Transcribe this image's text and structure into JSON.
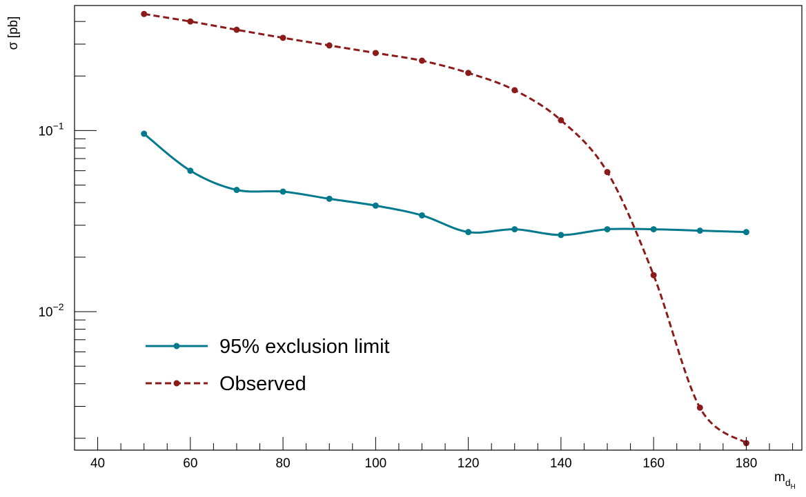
{
  "chart_data": {
    "type": "line",
    "title": "",
    "xlabel": "m",
    "xlabel_sub": "d",
    "xlabel_subsub": "H",
    "ylabel": "σ [pb]",
    "x_scale": "linear",
    "y_scale": "log",
    "xlim": [
      35,
      192
    ],
    "ylim": [
      0.00172,
      0.49
    ],
    "x_ticks": [
      40,
      60,
      80,
      100,
      120,
      140,
      160,
      180
    ],
    "y_ticks": [
      {
        "base": "10",
        "exp": "−1",
        "value": 0.1
      },
      {
        "base": "10",
        "exp": "−2",
        "value": 0.01
      }
    ],
    "grid": false,
    "legend_position": "bottom-left",
    "x": [
      50,
      60,
      70,
      80,
      90,
      100,
      110,
      120,
      130,
      140,
      150,
      160,
      170,
      180
    ],
    "series": [
      {
        "name": "95% exclusion limit",
        "color": "#00798c",
        "style": "solid",
        "values": [
          0.096,
          0.06,
          0.047,
          0.046,
          0.042,
          0.0385,
          0.034,
          0.0275,
          0.0285,
          0.0265,
          0.0285,
          0.0285,
          0.028,
          0.0275
        ]
      },
      {
        "name": "Observed",
        "color": "#8b1a1a",
        "style": "dashed",
        "values": [
          0.44,
          0.4,
          0.36,
          0.325,
          0.295,
          0.268,
          0.243,
          0.208,
          0.167,
          0.114,
          0.059,
          0.0159,
          0.00295,
          0.00188
        ]
      }
    ]
  }
}
